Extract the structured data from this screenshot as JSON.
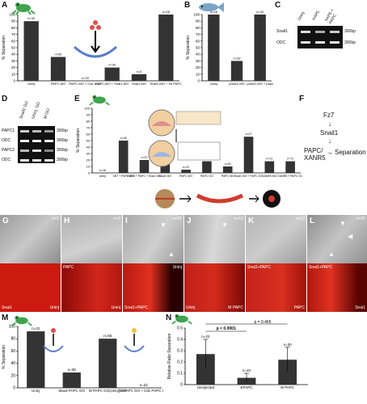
{
  "panels": {
    "A": "A",
    "B": "B",
    "C": "C",
    "D": "D",
    "E": "E",
    "F": "F",
    "G": "G",
    "H": "H",
    "I": "I",
    "J": "J",
    "K": "K",
    "L": "L",
    "M": "M",
    "N": "N"
  },
  "ylabels": {
    "separation": "% Separation",
    "ratio": "Relative Ratio Separation"
  },
  "colors": {
    "bar": "#333333",
    "fluor": "#cc1a10",
    "gel_bg": "#111111",
    "band": "#e8e8e8",
    "frog": "#3fa34d",
    "fish": "#7aa4c4"
  },
  "panel_C": {
    "lanes": [
      "Uninj",
      "XAP5",
      "XAP5 + PAPC"
    ],
    "rows": [
      "Snail1",
      "ODC"
    ],
    "sizes": [
      "300bp",
      "300bp"
    ]
  },
  "panel_D": {
    "lanes": [
      "Snail1 GO",
      "Uninj. GO",
      "M GO"
    ],
    "rows": [
      "PAPC1",
      "ODC",
      "PAPC2",
      "ODC"
    ],
    "sizes": [
      "300bp",
      "300bp",
      "300bp",
      "300bp"
    ]
  },
  "panel_F": {
    "top": "Fz7",
    "mid": "Snail1",
    "left": "PAPC/\nXANR5",
    "right": "Separation"
  },
  "panel_G": {
    "n": "n=1",
    "top_label": "",
    "bottom_left": "Snai1",
    "bottom_right": "Uninj"
  },
  "panel_H": {
    "n": "n=5",
    "top_label": "PAPC",
    "bottom_left": "",
    "bottom_right": "Uninj"
  },
  "panel_I": {
    "n": "n=20",
    "top_label": "Uninj",
    "bottom_left": "Snai1+PAPC",
    "bottom_right": ""
  },
  "panel_J": {
    "n": "n=13",
    "top_label": "",
    "bottom_left": "Uninj",
    "bottom_right": "M PAPC"
  },
  "panel_K": {
    "n": "n=12",
    "top_label": "Snai1+PAPC",
    "bottom_left": "",
    "bottom_right": "PAPC"
  },
  "panel_L": {
    "n": "n=20",
    "top_label": "Snai1+PAPC",
    "bottom_left": "",
    "bottom_right": "Snai1"
  },
  "chart_data": [
    {
      "panel": "A",
      "type": "bar",
      "categories": [
        "Uninj",
        "PAPC-MO",
        "PAPC-MO + Cdc-Xnr1",
        "PAPC-MO + Snai1-MO",
        "Snai1-MO",
        "Snai1-MO + Xb PAPC"
      ],
      "values": [
        90,
        36,
        0,
        20,
        10,
        100
      ],
      "n_labels": [
        "n=32",
        "n=30",
        "n=33",
        "n=30",
        "n=3",
        "n=28"
      ],
      "ylim": [
        0,
        100
      ],
      "yticks": [
        0,
        10,
        20,
        30,
        40,
        50,
        60,
        70,
        80,
        90,
        100
      ],
      "ylabel": "% Separation"
    },
    {
      "panel": "B",
      "type": "bar",
      "categories": [
        "Uninj",
        "pnslc1-MO",
        "pnslc1-MO + papc"
      ],
      "values": [
        100,
        30,
        100
      ],
      "n_labels": [
        "n=18",
        "n=33",
        "n=20"
      ],
      "ylim": [
        0,
        100
      ],
      "yticks": [
        0,
        10,
        20,
        30,
        40,
        50,
        60,
        70,
        80,
        90,
        100
      ],
      "ylabel": "% Separation"
    },
    {
      "panel": "E",
      "type": "bar",
      "categories": [
        "Uninj",
        "XB7 + PAPC GO",
        "XNR5 + PAPC + Snai1 MO",
        "Snai1 MO",
        "PAPC MO",
        "PAPC GO",
        "PAPC MO",
        "Snai1 MO + PAPC GO",
        "XANR5 MO",
        "XANR5 + PAPC GO"
      ],
      "values": [
        0,
        50,
        20,
        15,
        5,
        18,
        10,
        56,
        18,
        18
      ],
      "n_labels": [
        "n=18",
        "n=26",
        "n=20",
        "n=24",
        "n=22",
        "n=21",
        "n=20",
        "n=27",
        "n=21",
        "n=72"
      ],
      "ylim": [
        0,
        100
      ],
      "yticks": [
        0,
        10,
        20,
        30,
        40,
        50,
        60,
        70,
        80,
        90,
        100
      ],
      "ylabel": "% Separation"
    },
    {
      "panel": "M",
      "type": "bar",
      "categories": [
        "Uninj",
        "Maxd PAPC GO",
        "M PAPC GO(Uninj) GO",
        "M PAPC GO + Cdc PAPC GO"
      ],
      "values": [
        92,
        25,
        80,
        0
      ],
      "n_labels": [
        "n=22",
        "n=38",
        "n=56",
        "n=22"
      ],
      "ylim": [
        0,
        100
      ],
      "yticks": [
        0,
        20,
        40,
        60,
        80,
        100
      ],
      "ylabel": "% Separation"
    },
    {
      "panel": "N",
      "type": "bar",
      "categories": [
        "Uninjected",
        "EPAPC",
        "M PAPC"
      ],
      "values": [
        0.27,
        0.06,
        0.22
      ],
      "errors": [
        0.13,
        0.04,
        0.11
      ],
      "n_labels": [
        "n=22",
        "n=20",
        "n=30"
      ],
      "ylim": [
        0,
        0.5
      ],
      "yticks": [
        0,
        0.1,
        0.2,
        0.3,
        0.4,
        0.5
      ],
      "ylabel": "Relative Ratio Separation",
      "annotations": [
        "p < 0.0001",
        "p = 0.465"
      ]
    }
  ]
}
